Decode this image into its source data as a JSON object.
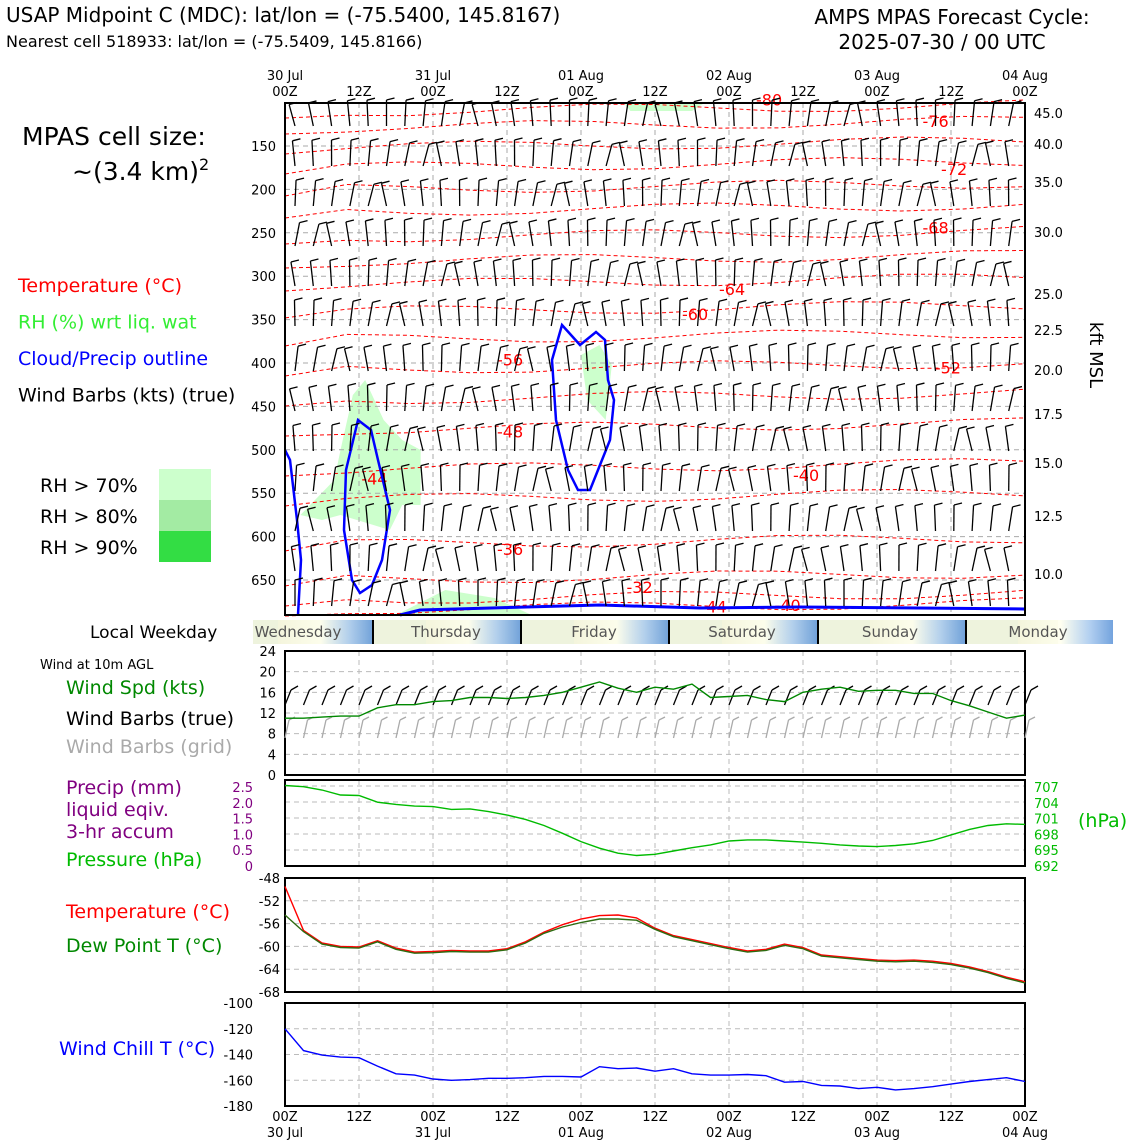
{
  "header": {
    "title_left": "USAP Midpoint C (MDC): lat/lon = (-75.5400, 145.8167)",
    "subtitle_left": "Nearest cell 518933: lat/lon = (-75.5409, 145.8166)",
    "title_right_1": "AMPS MPAS Forecast Cycle:",
    "title_right_2": "2025-07-30 / 00 UTC"
  },
  "colors": {
    "temperature": "#ff0000",
    "rh": "#33ff33",
    "cloud": "#0000ff",
    "wind_speed": "#008800",
    "precip": "#800080",
    "pressure": "#00bb00",
    "dewpoint": "#008800",
    "wind_chill": "#0000ff",
    "grid_barb": "#aaaaaa",
    "rh70": "#ccffcc",
    "rh80": "#a3eba3",
    "rh90": "#33dd44"
  },
  "left_panel": {
    "cell_size_label": "MPAS cell size:",
    "cell_size_value": "~(3.4 km)",
    "cell_size_exp": "2",
    "legend": [
      {
        "label": "Temperature (°C)",
        "color": "#ff0000"
      },
      {
        "label": "RH (%) wrt liq. wat",
        "color": "#33ee33"
      },
      {
        "label": "Cloud/Precip outline",
        "color": "#0000ff"
      },
      {
        "label": "Wind Barbs (kts) (true)",
        "color": "#000000"
      }
    ],
    "rh_legend": [
      "RH > 70%",
      "RH > 80%",
      "RH > 90%"
    ]
  },
  "time_axis": {
    "top_dates": [
      "30 Jul",
      "31 Jul",
      "01 Aug",
      "02 Aug",
      "03 Aug",
      "04 Aug"
    ],
    "hours": [
      "00Z",
      "12Z",
      "00Z",
      "12Z",
      "00Z",
      "12Z",
      "00Z",
      "12Z",
      "00Z",
      "12Z",
      "00Z"
    ]
  },
  "weekday_strip": {
    "label": "Local Weekday",
    "days": [
      "Wednesday",
      "Thursday",
      "Friday",
      "Saturday",
      "Sunday",
      "Monday"
    ]
  },
  "panel_labels": {
    "wind_header": "Wind at 10m AGL",
    "wind_speed": "Wind Spd (kts)",
    "wind_barbs_true": "Wind Barbs (true)",
    "wind_barbs_grid": "Wind Barbs (grid)",
    "precip_1": "Precip (mm)",
    "precip_2": "liquid eqiv.",
    "precip_3": "3-hr accum",
    "pressure": "Pressure (hPa)",
    "pressure_unit": "(hPa)",
    "temperature": "Temperature (°C)",
    "dewpoint": "Dew Point T (°C)",
    "wind_chill": "Wind Chill T (°C)",
    "kft_label": "kft MSL"
  },
  "chart_data": [
    {
      "type": "line",
      "name": "time-height cross section",
      "x_range_hours": [
        0,
        120
      ],
      "ylabel_left_ticks": [
        "150",
        "200",
        "250",
        "300",
        "350",
        "400",
        "450",
        "500",
        "550",
        "600",
        "650"
      ],
      "ylabel_right_ticks": [
        "45.0",
        "40.0",
        "35.0",
        "30.0",
        "25.0",
        "22.5",
        "20.0",
        "17.5",
        "15.0",
        "12.5",
        "10.0"
      ],
      "ylabel_right": "kft MSL",
      "temperature_contour_labels": [
        {
          "t_hours": 78.5,
          "p": 108,
          "label": "-80"
        },
        {
          "t_hours": 105.5,
          "p": 132,
          "label": "-76"
        },
        {
          "t_hours": 108.5,
          "p": 185,
          "label": "-72"
        },
        {
          "t_hours": 105.5,
          "p": 250,
          "label": "-68"
        },
        {
          "t_hours": 72.5,
          "p": 318,
          "label": "-64"
        },
        {
          "t_hours": 66.5,
          "p": 346,
          "label": "-60"
        },
        {
          "t_hours": 36.5,
          "p": 396,
          "label": "-56"
        },
        {
          "t_hours": 107.5,
          "p": 405,
          "label": "-52"
        },
        {
          "t_hours": 36.5,
          "p": 476,
          "label": "-48"
        },
        {
          "t_hours": 14.5,
          "p": 528,
          "label": "-44"
        },
        {
          "t_hours": 84.5,
          "p": 524,
          "label": "-40"
        },
        {
          "t_hours": 36.5,
          "p": 606,
          "label": "-36"
        },
        {
          "t_hours": 57.5,
          "p": 648,
          "label": "-32"
        },
        {
          "t_hours": 69.5,
          "p": 670,
          "label": "-44"
        },
        {
          "t_hours": 81.5,
          "p": 668,
          "label": "-40"
        }
      ]
    },
    {
      "type": "line",
      "name": "wind speed",
      "ylim": [
        0,
        24
      ],
      "yticks": [
        "0",
        "4",
        "8",
        "12",
        "16",
        "20",
        "24"
      ],
      "x_hours": [
        0,
        3,
        6,
        9,
        12,
        15,
        18,
        21,
        24,
        27,
        30,
        33,
        36,
        39,
        42,
        45,
        48,
        51,
        54,
        57,
        60,
        63,
        66,
        69,
        72,
        75,
        78,
        81,
        84,
        87,
        90,
        93,
        96,
        99,
        102,
        105,
        108,
        111,
        114,
        117,
        120
      ],
      "series": [
        {
          "name": "Wind Spd (kts)",
          "values": [
            11,
            11,
            11.2,
            11.4,
            11.4,
            13,
            13.6,
            13.6,
            14.2,
            14.4,
            15,
            15,
            14.8,
            15,
            15.4,
            16,
            17,
            18,
            16.8,
            16,
            17,
            16.6,
            17.6,
            15,
            15.2,
            15.4,
            14.6,
            14.2,
            16,
            16.6,
            17,
            16.2,
            16.4,
            16.4,
            15.8,
            15.8,
            14.4,
            13.4,
            12.2,
            11,
            11.6
          ]
        }
      ]
    },
    {
      "type": "line",
      "name": "pressure",
      "y_left_label_ticks": [
        "0",
        "0.5",
        "1.0",
        "1.5",
        "2.0",
        "2.5"
      ],
      "y_right_ticks": [
        "692",
        "695",
        "698",
        "701",
        "704",
        "707"
      ],
      "ylim": [
        692,
        707.5
      ],
      "x_hours": [
        0,
        3,
        6,
        9,
        12,
        15,
        18,
        21,
        24,
        27,
        30,
        33,
        36,
        39,
        42,
        45,
        48,
        51,
        54,
        57,
        60,
        63,
        66,
        69,
        72,
        75,
        78,
        81,
        84,
        87,
        90,
        93,
        96,
        99,
        102,
        105,
        108,
        111,
        114,
        117,
        120
      ],
      "series": [
        {
          "name": "Pressure (hPa)",
          "values": [
            706.5,
            706.3,
            705.7,
            704.8,
            704.7,
            703.5,
            703.1,
            702.8,
            702.7,
            702.2,
            702.3,
            701.8,
            701.2,
            700.4,
            699.3,
            697.9,
            696.4,
            695.2,
            694.3,
            693.9,
            694.1,
            694.7,
            695.3,
            695.8,
            696.5,
            696.7,
            696.7,
            696.5,
            696.3,
            696.1,
            695.8,
            695.6,
            695.5,
            695.7,
            696.0,
            696.6,
            697.6,
            698.6,
            699.3,
            699.6,
            699.5
          ]
        },
        {
          "name": "Precip (mm)",
          "values": [
            0,
            0,
            0,
            0,
            0,
            0,
            0,
            0,
            0,
            0,
            0,
            0,
            0,
            0,
            0,
            0,
            0,
            0,
            0,
            0,
            0,
            0,
            0,
            0,
            0,
            0,
            0,
            0,
            0,
            0,
            0,
            0,
            0,
            0,
            0,
            0,
            0,
            0,
            0,
            0,
            0
          ]
        }
      ]
    },
    {
      "type": "line",
      "name": "temperature",
      "ylim": [
        -68,
        -48
      ],
      "yticks": [
        "-68",
        "-64",
        "-60",
        "-56",
        "-52",
        "-48"
      ],
      "x_hours": [
        0,
        3,
        6,
        9,
        12,
        15,
        18,
        21,
        24,
        27,
        30,
        33,
        36,
        39,
        42,
        45,
        48,
        51,
        54,
        57,
        60,
        63,
        66,
        69,
        72,
        75,
        78,
        81,
        84,
        87,
        90,
        93,
        96,
        99,
        102,
        105,
        108,
        111,
        114,
        117,
        120
      ],
      "series": [
        {
          "name": "Temperature (°C)",
          "values": [
            -49.5,
            -57.2,
            -59.4,
            -60,
            -60.1,
            -59,
            -60.3,
            -61,
            -60.9,
            -60.7,
            -60.8,
            -60.8,
            -60.4,
            -59.2,
            -57.5,
            -56.2,
            -55.2,
            -54.6,
            -54.5,
            -55,
            -56.8,
            -58.1,
            -58.8,
            -59.5,
            -60.2,
            -60.8,
            -60.5,
            -59.6,
            -60.2,
            -61.5,
            -61.8,
            -62.1,
            -62.4,
            -62.5,
            -62.4,
            -62.6,
            -63,
            -63.6,
            -64.4,
            -65.4,
            -66.2
          ]
        },
        {
          "name": "Dew Point T (°C)",
          "values": [
            -54.5,
            -57.4,
            -59.6,
            -60.2,
            -60.3,
            -59.2,
            -60.5,
            -61.2,
            -61.1,
            -60.9,
            -61,
            -61,
            -60.6,
            -59.4,
            -57.7,
            -56.6,
            -55.8,
            -55.2,
            -55.2,
            -55.4,
            -57,
            -58.3,
            -59,
            -59.7,
            -60.4,
            -61,
            -60.7,
            -59.8,
            -60.4,
            -61.7,
            -62,
            -62.3,
            -62.6,
            -62.7,
            -62.6,
            -62.8,
            -63.2,
            -63.8,
            -64.6,
            -65.6,
            -66.4
          ]
        }
      ]
    },
    {
      "type": "line",
      "name": "wind chill",
      "ylim": [
        -180,
        -100
      ],
      "yticks": [
        "-180",
        "-160",
        "-140",
        "-120",
        "-100"
      ],
      "x_hours": [
        0,
        3,
        6,
        9,
        12,
        15,
        18,
        21,
        24,
        27,
        30,
        33,
        36,
        39,
        42,
        45,
        48,
        51,
        54,
        57,
        60,
        63,
        66,
        69,
        72,
        75,
        78,
        81,
        84,
        87,
        90,
        93,
        96,
        99,
        102,
        105,
        108,
        111,
        114,
        117,
        120
      ],
      "series": [
        {
          "name": "Wind Chill T (°C)",
          "values": [
            -120,
            -137,
            -140.5,
            -142,
            -142.5,
            -149,
            -155,
            -156,
            -159,
            -160,
            -159.5,
            -158.5,
            -158.5,
            -158,
            -157,
            -157,
            -157.5,
            -149.5,
            -151,
            -150.5,
            -153,
            -151,
            -155,
            -156,
            -156,
            -155.5,
            -156.5,
            -161.5,
            -161,
            -164,
            -164.5,
            -166.5,
            -165.5,
            -167.5,
            -166.5,
            -165,
            -163,
            -161,
            -159.5,
            -158,
            -161
          ]
        }
      ]
    }
  ]
}
